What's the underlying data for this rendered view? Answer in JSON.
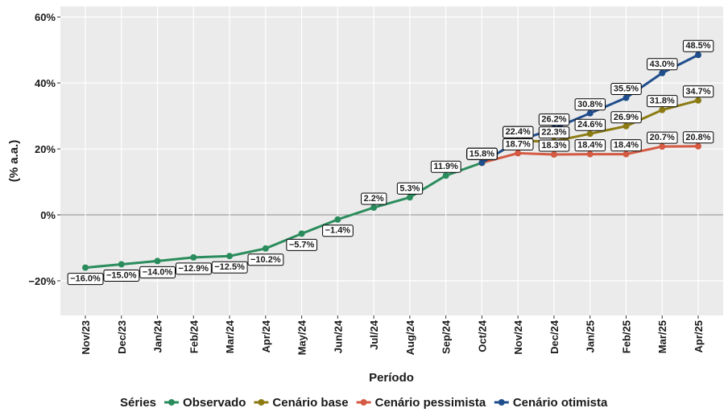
{
  "chart_data": {
    "type": "line",
    "x_label": "Período",
    "y_label": "(% a.a.)",
    "legend_title": "Séries",
    "categories": [
      "Nov/23",
      "Dec/23",
      "Jan/24",
      "Feb/24",
      "Mar/24",
      "Apr/24",
      "May/24",
      "Jun/24",
      "Jul/24",
      "Aug/24",
      "Sep/24",
      "Oct/24",
      "Nov/24",
      "Dec/24",
      "Jan/25",
      "Feb/25",
      "Mar/25",
      "Apr/25"
    ],
    "ylim": [
      -30.5,
      63.2
    ],
    "yticks": [
      {
        "value": -20,
        "label": "−20%"
      },
      {
        "value": 0,
        "label": "0%"
      },
      {
        "value": 20,
        "label": "20%"
      },
      {
        "value": 40,
        "label": "40%"
      },
      {
        "value": 60,
        "label": "60%"
      }
    ],
    "grid": true,
    "legend_position": "bottom",
    "series": [
      {
        "name": "Observado",
        "color": "#2a8c5c",
        "values": [
          -16.0,
          -15.0,
          -14.0,
          -12.9,
          -12.5,
          -10.2,
          -5.7,
          -1.4,
          2.2,
          5.3,
          11.9,
          15.8,
          null,
          null,
          null,
          null,
          null,
          null
        ],
        "value_labels": [
          "−16.0%",
          "−15.0%",
          "−14.0%",
          "−12.9%",
          "−12.5%",
          "−10.2%",
          "−5.7%",
          "−1.4%",
          "2.2%",
          "5.3%",
          "11.9%",
          "15.8%",
          null,
          null,
          null,
          null,
          null,
          null
        ]
      },
      {
        "name": "Cenário base",
        "color": "#8c7b12",
        "values": [
          null,
          null,
          null,
          null,
          null,
          null,
          null,
          null,
          null,
          null,
          null,
          15.8,
          22.4,
          22.3,
          24.6,
          26.9,
          31.8,
          34.7
        ],
        "value_labels": [
          null,
          null,
          null,
          null,
          null,
          null,
          null,
          null,
          null,
          null,
          null,
          "15.8%",
          "22.4%",
          "22.3%",
          "24.6%",
          "26.9%",
          "31.8%",
          "34.7%"
        ]
      },
      {
        "name": "Cenário pessimista",
        "color": "#d45a43",
        "values": [
          null,
          null,
          null,
          null,
          null,
          null,
          null,
          null,
          null,
          null,
          null,
          15.8,
          18.7,
          18.3,
          18.4,
          18.4,
          20.7,
          20.8
        ],
        "value_labels": [
          null,
          null,
          null,
          null,
          null,
          null,
          null,
          null,
          null,
          null,
          null,
          "15.8%",
          "18.7%",
          "18.3%",
          "18.4%",
          "18.4%",
          "20.7%",
          "20.8%"
        ]
      },
      {
        "name": "Cenário otimista",
        "color": "#1f4e8c",
        "values": [
          null,
          null,
          null,
          null,
          null,
          null,
          null,
          null,
          null,
          null,
          null,
          15.8,
          22.4,
          26.2,
          30.8,
          35.5,
          43.0,
          48.5
        ],
        "value_labels": [
          null,
          null,
          null,
          null,
          null,
          null,
          null,
          null,
          null,
          null,
          null,
          "15.8%",
          "22.4%",
          "26.2%",
          "30.8%",
          "35.5%",
          "43.0%",
          "48.5%"
        ]
      }
    ]
  }
}
